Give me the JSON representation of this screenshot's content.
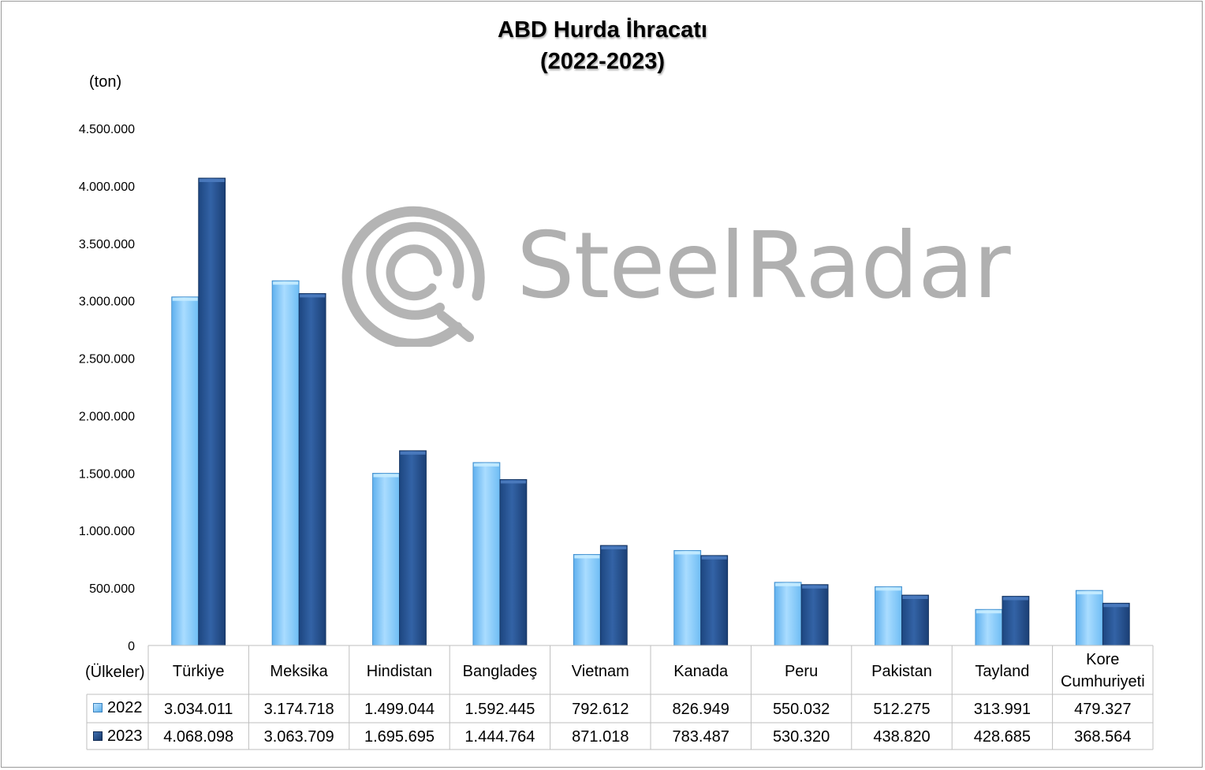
{
  "title_line1": "ABD Hurda İhracatı",
  "title_line2": "(2022-2023)",
  "unit_label": "(ton)",
  "x_axis_title": "(Ülkeler)",
  "watermark": "SteelRadar",
  "colors": {
    "series_2022": "#7cc3f5",
    "series_2023": "#24508f",
    "grid": "#bfbfbf"
  },
  "chart_data": {
    "type": "bar",
    "title": "ABD Hurda İhracatı (2022-2023)",
    "ylabel": "(ton)",
    "xlabel": "(Ülkeler)",
    "ylim": [
      0,
      4500000
    ],
    "y_ticks": [
      0,
      500000,
      1000000,
      1500000,
      2000000,
      2500000,
      3000000,
      3500000,
      4000000,
      4500000
    ],
    "y_tick_labels": [
      "0",
      "500.000",
      "1.000.000",
      "1.500.000",
      "2.000.000",
      "2.500.000",
      "3.000.000",
      "3.500.000",
      "4.000.000",
      "4.500.000"
    ],
    "categories": [
      "Türkiye",
      "Meksika",
      "Hindistan",
      "Bangladeş",
      "Vietnam",
      "Kanada",
      "Peru",
      "Pakistan",
      "Tayland",
      "Kore Cumhuriyeti"
    ],
    "series": [
      {
        "name": "2022",
        "values": [
          3034011,
          3174718,
          1499044,
          1592445,
          792612,
          826949,
          550032,
          512275,
          313991,
          479327
        ],
        "value_labels": [
          "3.034.011",
          "3.174.718",
          "1.499.044",
          "1.592.445",
          "792.612",
          "826.949",
          "550.032",
          "512.275",
          "313.991",
          "479.327"
        ]
      },
      {
        "name": "2023",
        "values": [
          4068098,
          3063709,
          1695695,
          1444764,
          871018,
          783487,
          530320,
          438820,
          428685,
          368564
        ],
        "value_labels": [
          "4.068.098",
          "3.063.709",
          "1.695.695",
          "1.444.764",
          "871.018",
          "783.487",
          "530.320",
          "438.820",
          "428.685",
          "368.564"
        ]
      }
    ],
    "legend": "data-table",
    "grid": false
  }
}
